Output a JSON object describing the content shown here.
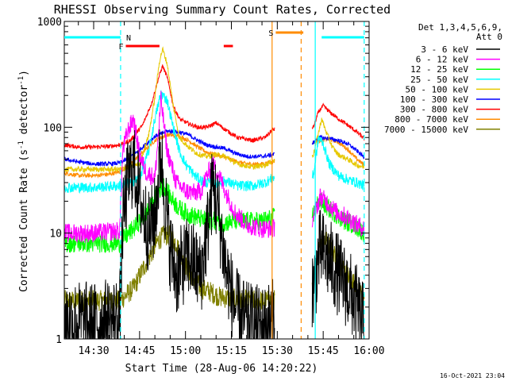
{
  "chart_data": {
    "type": "line",
    "title": "RHESSI Observing Summary Count Rates, Corrected",
    "xlabel": "Start Time (28-Aug-06 14:20:22)",
    "ylabel_main": "Corrected Count Rate (s",
    "ylabel_sup1": "-1",
    "ylabel_mid": " detector",
    "ylabel_sup2": "-1",
    "ylabel_end": ")",
    "yscale": "log",
    "ylim": [
      1,
      1000
    ],
    "xlim": [
      20.4,
      120
    ],
    "x_unit": "minutes after 14:00",
    "xticks": [
      {
        "v": 30,
        "label": "14:30"
      },
      {
        "v": 45,
        "label": "14:45"
      },
      {
        "v": 60,
        "label": "15:00"
      },
      {
        "v": 75,
        "label": "15:15"
      },
      {
        "v": 90,
        "label": "15:30"
      },
      {
        "v": 105,
        "label": "15:45"
      },
      {
        "v": 120,
        "label": "16:00"
      }
    ],
    "yticks": [
      {
        "v": 1,
        "label": "1"
      },
      {
        "v": 10,
        "label": "10"
      },
      {
        "v": 100,
        "label": "100"
      },
      {
        "v": 1000,
        "label": "1000"
      }
    ],
    "legend": {
      "position": "top-right",
      "header": [
        "Det 1,3,4,5,6,9,",
        "Att 0"
      ],
      "entries": [
        {
          "label": "3 - 6 keV",
          "color": "#000000"
        },
        {
          "label": "6 - 12 keV",
          "color": "#ff00ff"
        },
        {
          "label": "12 - 25 keV",
          "color": "#00ff00"
        },
        {
          "label": "25 - 50 keV",
          "color": "#00ffff"
        },
        {
          "label": "50 - 100 keV",
          "color": "#e6c800"
        },
        {
          "label": "100 - 300 keV",
          "color": "#0000ff"
        },
        {
          "label": "300 - 800 keV",
          "color": "#ff0000"
        },
        {
          "label": "800 - 7000 keV",
          "color": "#ff8c00"
        },
        {
          "label": "7000 - 15000 keV",
          "color": "#808000"
        }
      ]
    },
    "flags": [
      {
        "label": "N",
        "color": "#00ffff",
        "segments": [
          [
            20.4,
            38.8
          ],
          [
            104.5,
            118.4
          ]
        ]
      },
      {
        "label": "F",
        "color": "#ff0000",
        "segments": [
          [
            40.5,
            51.5
          ],
          [
            72.5,
            75.5
          ]
        ]
      },
      {
        "label": "S",
        "color": "#ff8c00",
        "segments": [
          [
            89.5,
            98.5
          ]
        ]
      }
    ],
    "vlines": [
      {
        "x": 38.8,
        "color": "#00ffff",
        "style": "dashed"
      },
      {
        "x": 88.3,
        "color": "#ff8c00",
        "style": "solid"
      },
      {
        "x": 97.8,
        "color": "#ff8c00",
        "style": "dashed"
      },
      {
        "x": 102.4,
        "color": "#00ffff",
        "style": "solid"
      },
      {
        "x": 118.4,
        "color": "#00ffff",
        "style": "dashed"
      }
    ],
    "gaps": [
      [
        89.1,
        101.3
      ]
    ],
    "series": [
      {
        "name": "3 - 6 keV",
        "color": "#000000",
        "noise": 0.8,
        "points": [
          [
            20.4,
            1.5
          ],
          [
            30,
            1.4
          ],
          [
            38.5,
            1.6
          ],
          [
            39.5,
            12
          ],
          [
            41,
            30
          ],
          [
            43,
            45
          ],
          [
            45,
            22
          ],
          [
            48,
            10
          ],
          [
            50,
            14
          ],
          [
            52,
            60
          ],
          [
            53,
            25
          ],
          [
            55,
            7
          ],
          [
            57,
            4
          ],
          [
            59,
            5
          ],
          [
            61,
            6
          ],
          [
            63,
            5
          ],
          [
            65,
            4
          ],
          [
            67,
            10
          ],
          [
            69,
            30
          ],
          [
            71,
            14
          ],
          [
            73,
            5
          ],
          [
            76,
            2
          ],
          [
            80,
            1.4
          ],
          [
            85,
            1.3
          ],
          [
            88.5,
            1.5
          ],
          [
            101.8,
            3
          ],
          [
            104,
            7
          ],
          [
            106,
            6
          ],
          [
            108,
            5
          ],
          [
            110,
            4
          ],
          [
            113,
            3
          ],
          [
            116,
            2
          ],
          [
            118.4,
            1.3
          ]
        ]
      },
      {
        "name": "6 - 12 keV",
        "color": "#ff00ff",
        "noise": 0.18,
        "points": [
          [
            20.4,
            10
          ],
          [
            30,
            10
          ],
          [
            38.5,
            10.5
          ],
          [
            39.5,
            60
          ],
          [
            41,
            90
          ],
          [
            43,
            120
          ],
          [
            45,
            55
          ],
          [
            47,
            38
          ],
          [
            50,
            33
          ],
          [
            52,
            180
          ],
          [
            54,
            60
          ],
          [
            57,
            30
          ],
          [
            60,
            25
          ],
          [
            63,
            24
          ],
          [
            65,
            25
          ],
          [
            67,
            35
          ],
          [
            69,
            45
          ],
          [
            71,
            35
          ],
          [
            73,
            25
          ],
          [
            76,
            16
          ],
          [
            80,
            12
          ],
          [
            85,
            11
          ],
          [
            88.5,
            11
          ],
          [
            101.8,
            14
          ],
          [
            104,
            22
          ],
          [
            106,
            20
          ],
          [
            109,
            16
          ],
          [
            113,
            14
          ],
          [
            116,
            12
          ],
          [
            118.4,
            11
          ]
        ]
      },
      {
        "name": "12 - 25 keV",
        "color": "#00ff00",
        "noise": 0.18,
        "points": [
          [
            20.4,
            8
          ],
          [
            30,
            8
          ],
          [
            38.5,
            8
          ],
          [
            40,
            9
          ],
          [
            43,
            11
          ],
          [
            46,
            14
          ],
          [
            49,
            18
          ],
          [
            51,
            25
          ],
          [
            53,
            28
          ],
          [
            55,
            22
          ],
          [
            58,
            17
          ],
          [
            61,
            15
          ],
          [
            64,
            14
          ],
          [
            67,
            13
          ],
          [
            70,
            13
          ],
          [
            73,
            12.5
          ],
          [
            76,
            13
          ],
          [
            80,
            13
          ],
          [
            85,
            13
          ],
          [
            88.5,
            14
          ],
          [
            101.8,
            15
          ],
          [
            103.5,
            20
          ],
          [
            105,
            19
          ],
          [
            108,
            16
          ],
          [
            112,
            13
          ],
          [
            115,
            12
          ],
          [
            118.4,
            10
          ]
        ]
      },
      {
        "name": "25 - 50 keV",
        "color": "#00ffff",
        "noise": 0.1,
        "points": [
          [
            20.4,
            27
          ],
          [
            30,
            27
          ],
          [
            38.5,
            28
          ],
          [
            42,
            30
          ],
          [
            45,
            33
          ],
          [
            48,
            60
          ],
          [
            50,
            120
          ],
          [
            52,
            210
          ],
          [
            54,
            180
          ],
          [
            56,
            100
          ],
          [
            58,
            60
          ],
          [
            60,
            45
          ],
          [
            63,
            35
          ],
          [
            66,
            30
          ],
          [
            70,
            30
          ],
          [
            73,
            31
          ],
          [
            77,
            28
          ],
          [
            82,
            28
          ],
          [
            86,
            30
          ],
          [
            88.5,
            33
          ],
          [
            101.8,
            35
          ],
          [
            103.5,
            80
          ],
          [
            105,
            70
          ],
          [
            107,
            45
          ],
          [
            110,
            35
          ],
          [
            113,
            32
          ],
          [
            116,
            30
          ],
          [
            118.4,
            28
          ]
        ]
      },
      {
        "name": "50 - 100 keV",
        "color": "#e6c800",
        "noise": 0.05,
        "points": [
          [
            20.4,
            40
          ],
          [
            30,
            40
          ],
          [
            38.5,
            40
          ],
          [
            42,
            42
          ],
          [
            45,
            45
          ],
          [
            48,
            85
          ],
          [
            50,
            190
          ],
          [
            51.5,
            420
          ],
          [
            52.5,
            550
          ],
          [
            54,
            400
          ],
          [
            56,
            160
          ],
          [
            58,
            80
          ],
          [
            61,
            65
          ],
          [
            64,
            56
          ],
          [
            67,
            53
          ],
          [
            70,
            55
          ],
          [
            73,
            53
          ],
          [
            77,
            45
          ],
          [
            82,
            42
          ],
          [
            86,
            44
          ],
          [
            88.5,
            48
          ],
          [
            101.8,
            55
          ],
          [
            103.5,
            90
          ],
          [
            104.5,
            120
          ],
          [
            106,
            90
          ],
          [
            108,
            65
          ],
          [
            110,
            55
          ],
          [
            113,
            50
          ],
          [
            116,
            44
          ],
          [
            118.4,
            42
          ]
        ]
      },
      {
        "name": "100 - 300 keV",
        "color": "#0000ff",
        "noise": 0.04,
        "points": [
          [
            20.4,
            50
          ],
          [
            25,
            47
          ],
          [
            30,
            45
          ],
          [
            35,
            45
          ],
          [
            38.5,
            46
          ],
          [
            42,
            52
          ],
          [
            46,
            65
          ],
          [
            50,
            82
          ],
          [
            54,
            92
          ],
          [
            58,
            90
          ],
          [
            61,
            85
          ],
          [
            64,
            75
          ],
          [
            67,
            68
          ],
          [
            70,
            65
          ],
          [
            73,
            63
          ],
          [
            76,
            57
          ],
          [
            80,
            53
          ],
          [
            85,
            53
          ],
          [
            88.5,
            55
          ],
          [
            101.8,
            72
          ],
          [
            104,
            80
          ],
          [
            107,
            78
          ],
          [
            110,
            75
          ],
          [
            113,
            70
          ],
          [
            116,
            60
          ],
          [
            118.4,
            52
          ]
        ]
      },
      {
        "name": "300 - 800 keV",
        "color": "#ff0000",
        "noise": 0.04,
        "points": [
          [
            20.4,
            68
          ],
          [
            25,
            65
          ],
          [
            30,
            65
          ],
          [
            35,
            66
          ],
          [
            38.5,
            68
          ],
          [
            42,
            75
          ],
          [
            46,
            105
          ],
          [
            49,
            170
          ],
          [
            51,
            280
          ],
          [
            52.5,
            380
          ],
          [
            54,
            300
          ],
          [
            56,
            160
          ],
          [
            58,
            120
          ],
          [
            61,
            108
          ],
          [
            64,
            100
          ],
          [
            67,
            100
          ],
          [
            70,
            110
          ],
          [
            73,
            95
          ],
          [
            77,
            80
          ],
          [
            82,
            75
          ],
          [
            86,
            80
          ],
          [
            88.5,
            95
          ],
          [
            101.8,
            100
          ],
          [
            103.5,
            140
          ],
          [
            105,
            160
          ],
          [
            107,
            140
          ],
          [
            110,
            120
          ],
          [
            113,
            105
          ],
          [
            116,
            90
          ],
          [
            118.4,
            78
          ]
        ]
      },
      {
        "name": "800 - 7000 keV",
        "color": "#ff8c00",
        "noise": 0.04,
        "points": [
          [
            20.4,
            37
          ],
          [
            25,
            35
          ],
          [
            30,
            35
          ],
          [
            35,
            36
          ],
          [
            38.5,
            38
          ],
          [
            42,
            45
          ],
          [
            46,
            58
          ],
          [
            50,
            75
          ],
          [
            54,
            85
          ],
          [
            58,
            82
          ],
          [
            61,
            75
          ],
          [
            64,
            65
          ],
          [
            67,
            58
          ],
          [
            70,
            55
          ],
          [
            73,
            52
          ],
          [
            76,
            48
          ],
          [
            80,
            45
          ],
          [
            85,
            45
          ],
          [
            88.5,
            47
          ],
          [
            101.8,
            72
          ],
          [
            104,
            75
          ],
          [
            107,
            78
          ],
          [
            110,
            72
          ],
          [
            113,
            62
          ],
          [
            116,
            50
          ],
          [
            118.4,
            44
          ]
        ]
      },
      {
        "name": "7000 - 15000 keV",
        "color": "#808000",
        "noise": 0.2,
        "points": [
          [
            20.4,
            2.3
          ],
          [
            30,
            2.3
          ],
          [
            38.5,
            2.3
          ],
          [
            40,
            2.5
          ],
          [
            43,
            3
          ],
          [
            46,
            4.5
          ],
          [
            49,
            6.5
          ],
          [
            51,
            8.5
          ],
          [
            53,
            9.5
          ],
          [
            55,
            9.5
          ],
          [
            57,
            8
          ],
          [
            59,
            5.5
          ],
          [
            62,
            4
          ],
          [
            65,
            3
          ],
          [
            68,
            2.8
          ],
          [
            71,
            2.5
          ],
          [
            75,
            2.4
          ],
          [
            80,
            2.3
          ],
          [
            85,
            2.3
          ],
          [
            88.5,
            2.3
          ],
          [
            101.8,
            3
          ],
          [
            104,
            9
          ],
          [
            106,
            8.5
          ],
          [
            108,
            7
          ],
          [
            110,
            5.5
          ],
          [
            113,
            4
          ],
          [
            116,
            3
          ],
          [
            118.4,
            2.3
          ]
        ]
      }
    ]
  },
  "footer": {
    "timestamp": "16-Oct-2021 23:04"
  }
}
